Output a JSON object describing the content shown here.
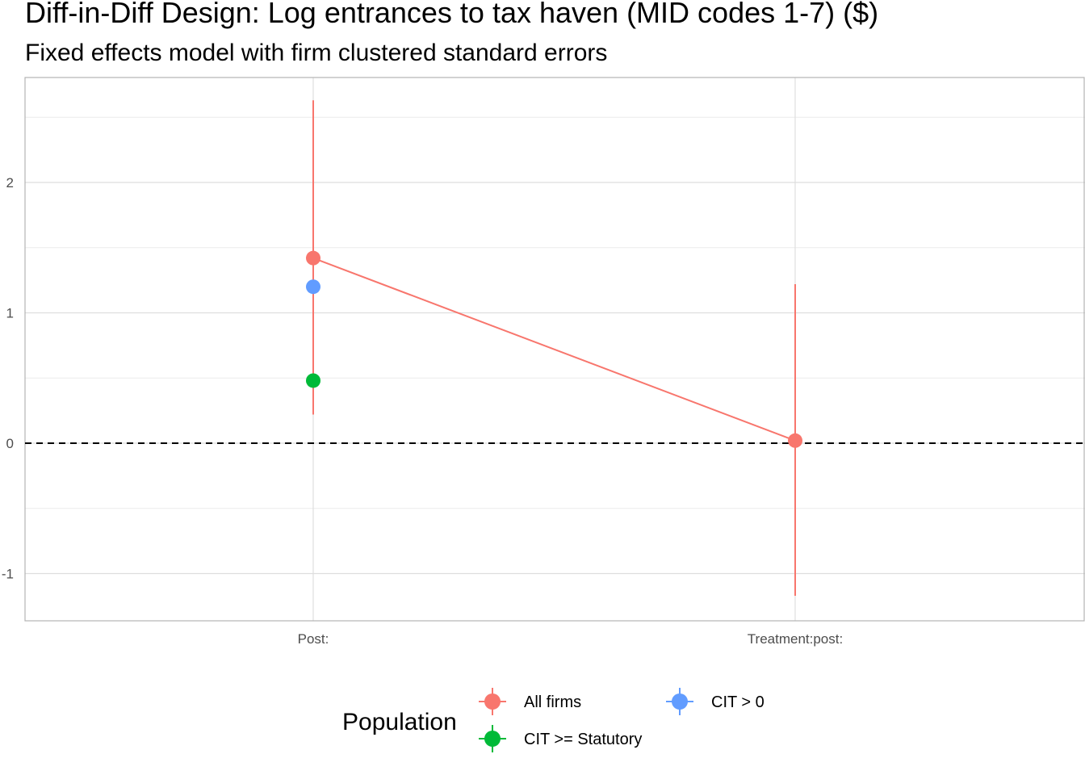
{
  "chart_data": {
    "type": "scatter",
    "title": "Diff-in-Diff Design: Log entrances to tax haven (MID codes 1-7)  ($)",
    "subtitle": "Fixed effects model with firm clustered standard errors",
    "xlabel": "",
    "ylabel": "",
    "categories": [
      "Post:",
      "Treatment:post:"
    ],
    "ylim": [
      -1.35,
      2.8
    ],
    "y_ticks": [
      -1,
      0,
      1,
      2
    ],
    "y_tick_labels": [
      "-1",
      "0",
      "1",
      "2"
    ],
    "grid": true,
    "reference_line": {
      "y": 0,
      "style": "dashed",
      "color": "#000000"
    },
    "legend": {
      "title": "Population",
      "position": "bottom"
    },
    "series": [
      {
        "name": "All firms",
        "color": "#F8766D",
        "values": [
          1.42,
          0.02
        ],
        "ci_low": [
          0.22,
          -1.17
        ],
        "ci_high": [
          2.63,
          1.22
        ],
        "connect": true
      },
      {
        "name": "CIT >= Statutory",
        "color": "#00BA38",
        "values": [
          0.48,
          null
        ],
        "ci_low": [
          null,
          null
        ],
        "ci_high": [
          null,
          null
        ],
        "connect": false
      },
      {
        "name": "CIT > 0",
        "color": "#619CFF",
        "values": [
          1.2,
          null
        ],
        "ci_low": [
          null,
          null
        ],
        "ci_high": [
          null,
          null
        ],
        "connect": false
      }
    ]
  }
}
